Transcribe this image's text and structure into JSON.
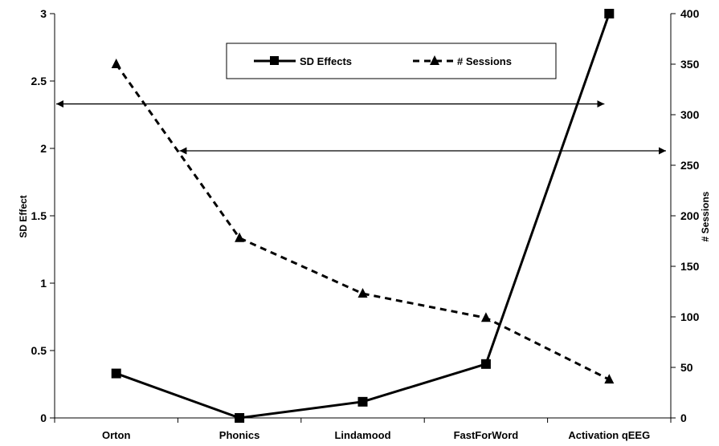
{
  "chart_data": {
    "type": "line",
    "categories": [
      "Orton",
      "Phonics",
      "Lindamood",
      "FastForWord",
      "Activation qEEG"
    ],
    "series": [
      {
        "name": "SD Effects",
        "axis": "left",
        "values": [
          0.33,
          0.0,
          0.12,
          0.4,
          3.0
        ],
        "style": "solid",
        "marker": "square",
        "color": "#000000"
      },
      {
        "name": "# Sessions",
        "axis": "right",
        "values": [
          350,
          178,
          123,
          99,
          38
        ],
        "style": "dashed",
        "marker": "triangle",
        "color": "#000000"
      }
    ],
    "ylabel": "SD Effect",
    "y2label": "# Sessions",
    "ylim": [
      0,
      3
    ],
    "yticks": [
      "0",
      "0.5",
      "1",
      "1.5",
      "2",
      "2.5",
      "3"
    ],
    "y2lim": [
      0,
      400
    ],
    "y2ticks": [
      "0",
      "50",
      "100",
      "150",
      "200",
      "250",
      "300",
      "350",
      "400"
    ],
    "legend_position": "top-center",
    "annotations": [
      {
        "type": "double-arrow",
        "from_category_boundary": -0.0,
        "to_category": 4,
        "level_left_axis": 2.33
      },
      {
        "type": "double-arrow",
        "from_category_boundary": 1.0,
        "to_category_boundary": 5.0,
        "level_left_axis": 2.0
      }
    ]
  }
}
